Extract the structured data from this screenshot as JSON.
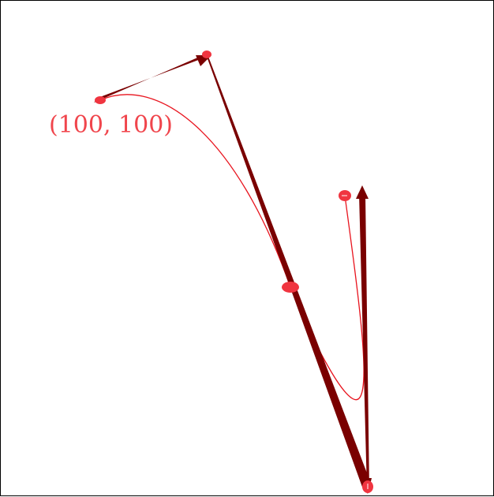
{
  "labels": {
    "start_point": "(100, 100)"
  },
  "colors": {
    "curve": "#e8141e",
    "arrow": "#7a0000",
    "point": "#f03540",
    "label": "#f0454c",
    "frame": "#000000"
  }
}
